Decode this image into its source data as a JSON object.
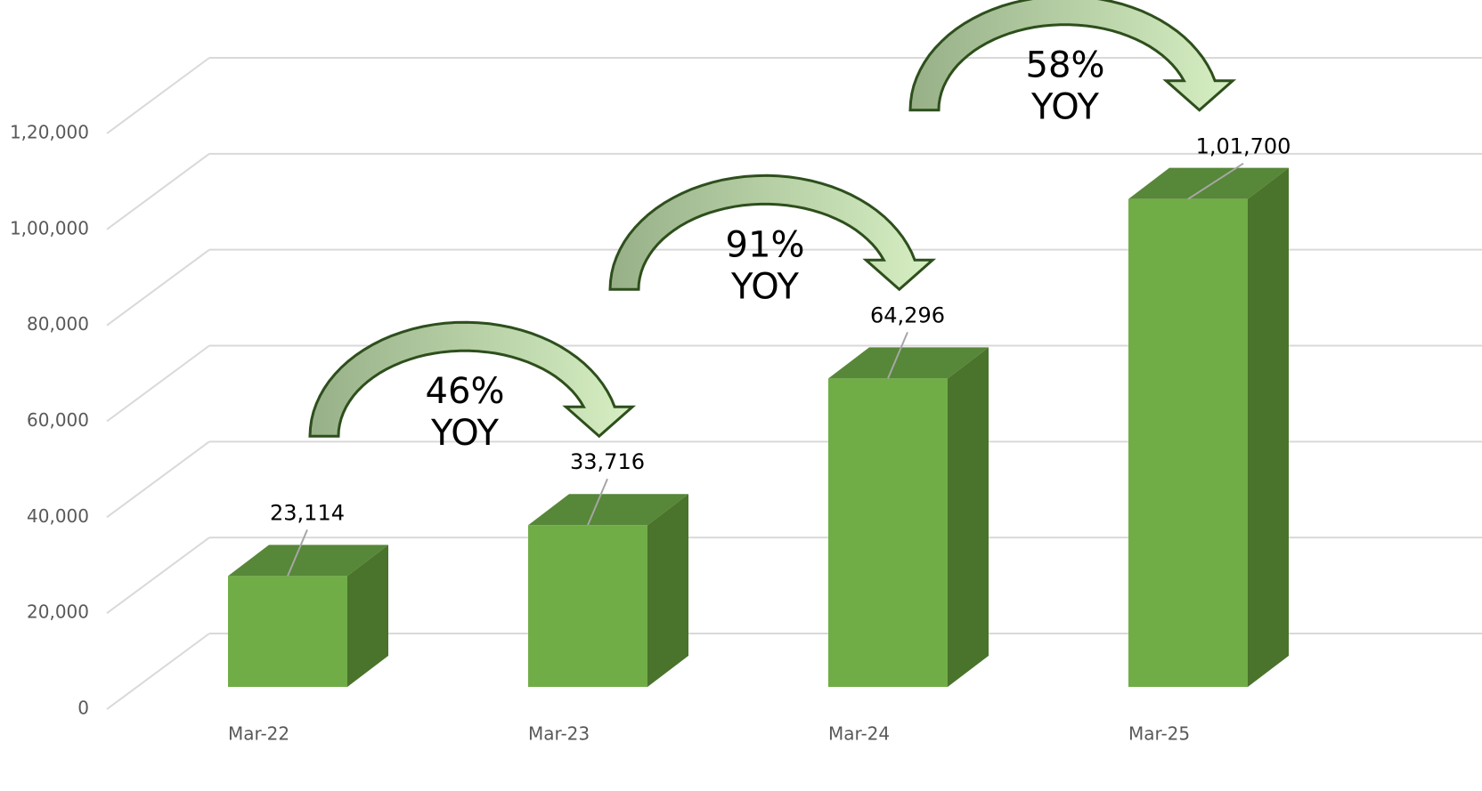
{
  "chart_data": {
    "type": "bar3d",
    "categories": [
      "Mar-22",
      "Mar-23",
      "Mar-24",
      "Mar-25"
    ],
    "values": [
      23114,
      33716,
      64296,
      101700
    ],
    "value_labels": [
      "23,114",
      "33,716",
      "64,296",
      "1,01,700"
    ],
    "color": "#70ad47",
    "ylim": [
      0,
      120000
    ],
    "yticks": [
      0,
      {
        "value": 20000,
        "label": "20,000"
      },
      {
        "value": 40000,
        "label": "40,000"
      },
      {
        "value": 60000,
        "label": "60,000"
      },
      {
        "value": 80000,
        "label": "80,000"
      },
      {
        "value": 100000,
        "label": "1,00,000"
      },
      {
        "value": 120000,
        "label": "1,20,000"
      }
    ],
    "grid": true,
    "annotations": [
      [
        "46%",
        "YOY"
      ],
      [
        "91%",
        "YOY"
      ],
      [
        "58%",
        "YOY"
      ]
    ]
  }
}
